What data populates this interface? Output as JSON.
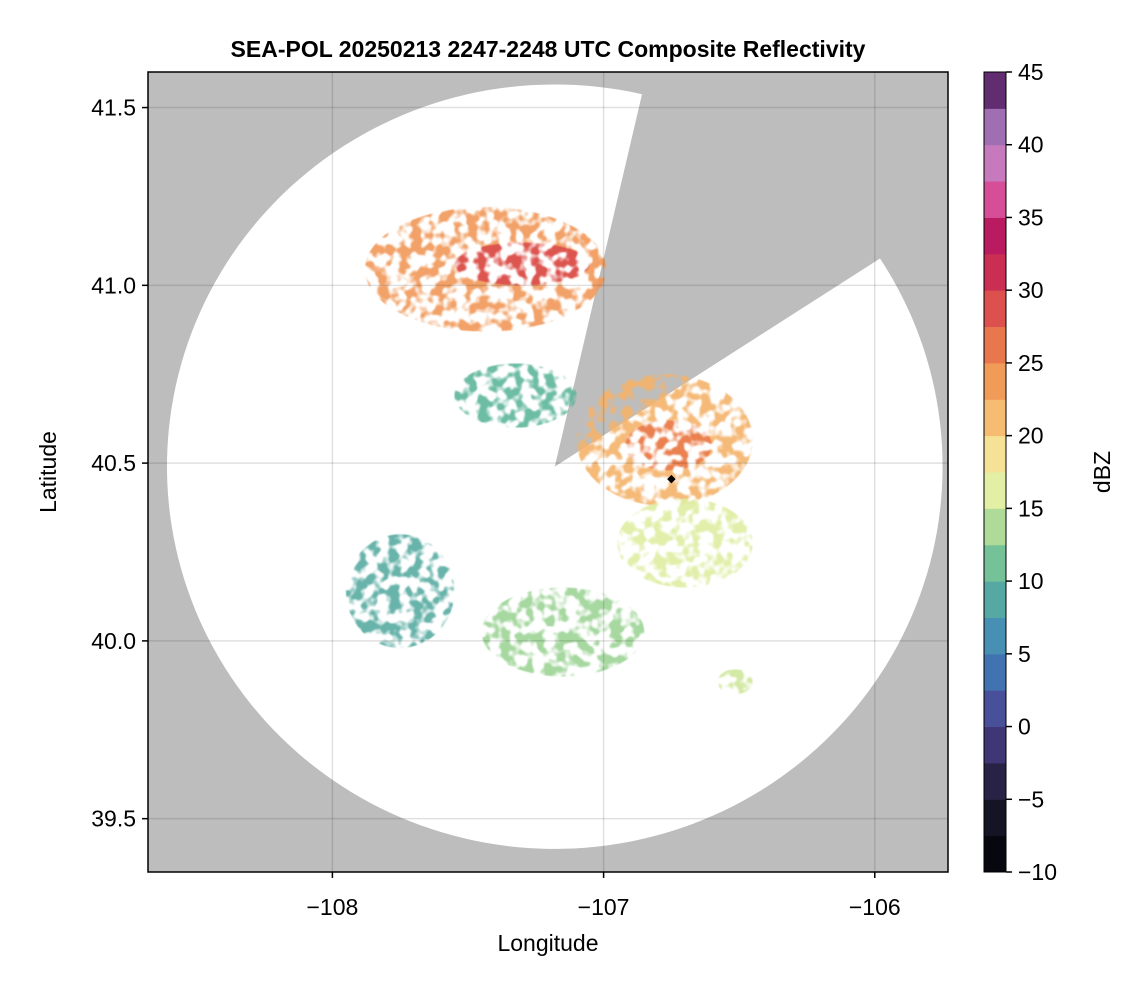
{
  "chart_data": {
    "type": "heatmap",
    "title": "SEA-POL 20250213 2247-2248 UTC Composite Reflectivity",
    "xlabel": "Longitude",
    "ylabel": "Latitude",
    "xlim": [
      -108.68,
      -105.73
    ],
    "ylim": [
      39.35,
      41.6
    ],
    "xticks": [
      -108,
      -107,
      -106
    ],
    "xtick_labels": [
      "−108",
      "−107",
      "−106"
    ],
    "yticks": [
      39.5,
      40.0,
      40.5,
      41.0,
      41.5
    ],
    "ytick_labels": [
      "39.5",
      "40.0",
      "40.5",
      "41.0",
      "41.5"
    ],
    "grid": true,
    "background_color": "#bdbdbd",
    "radar": {
      "center": [
        -107.18,
        40.49
      ],
      "range_edge_lon": [
        -108.62,
        -105.76
      ],
      "range_edge_lat": [
        39.38,
        41.53
      ],
      "blocked_sectors_deg_from_north": [
        [
          13,
          57
        ]
      ],
      "site_marker": [
        -106.75,
        40.455
      ]
    },
    "colorbar": {
      "label": "dBZ",
      "min": -10,
      "max": 45,
      "step": 2.5,
      "ticks": [
        -10,
        -5,
        0,
        5,
        10,
        15,
        20,
        25,
        30,
        35,
        40,
        45
      ],
      "tick_labels": [
        "−10",
        "−5",
        "0",
        "5",
        "10",
        "15",
        "20",
        "25",
        "30",
        "35",
        "40",
        "45"
      ],
      "colormap": "spectral (reversed)"
    },
    "echo_regions": [
      {
        "name": "north band",
        "lon": [
          -107.88,
          -106.99
        ],
        "lat": [
          40.87,
          41.22
        ],
        "dbz": 24
      },
      {
        "name": "north band core",
        "lon": [
          -107.55,
          -107.05
        ],
        "lat": [
          41.0,
          41.12
        ],
        "dbz": 29
      },
      {
        "name": "west mid echo",
        "lon": [
          -107.55,
          -107.1
        ],
        "lat": [
          40.6,
          40.78
        ],
        "dbz": 10
      },
      {
        "name": "east echo",
        "lon": [
          -107.1,
          -106.45
        ],
        "lat": [
          40.38,
          40.75
        ],
        "dbz": 22
      },
      {
        "name": "east echo core",
        "lon": [
          -106.92,
          -106.6
        ],
        "lat": [
          40.48,
          40.62
        ],
        "dbz": 26
      },
      {
        "name": "southeast streaks",
        "lon": [
          -106.95,
          -106.45
        ],
        "lat": [
          40.15,
          40.4
        ],
        "dbz": 16
      },
      {
        "name": "southwest echo",
        "lon": [
          -107.95,
          -107.55
        ],
        "lat": [
          39.98,
          40.3
        ],
        "dbz": 9
      },
      {
        "name": "south echoes",
        "lon": [
          -107.45,
          -106.85
        ],
        "lat": [
          39.9,
          40.15
        ],
        "dbz": 13
      },
      {
        "name": "far southeast specks",
        "lon": [
          -106.58,
          -106.45
        ],
        "lat": [
          39.85,
          39.92
        ],
        "dbz": 15
      }
    ]
  }
}
